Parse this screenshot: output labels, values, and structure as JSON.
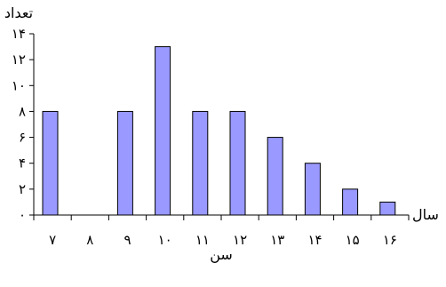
{
  "chart_data": {
    "type": "bar",
    "categories": [
      "۷",
      "۸",
      "۹",
      "۱۰",
      "۱۱",
      "۱۲",
      "۱۳",
      "۱۴",
      "۱۵",
      "۱۶"
    ],
    "values": [
      8,
      0,
      8,
      13,
      8,
      8,
      6,
      4,
      2,
      1
    ],
    "ylabel": "تعداد",
    "xlabel": "سن",
    "x_unit_label": "سال",
    "yticks": [
      0,
      2,
      4,
      6,
      8,
      10,
      12,
      14
    ],
    "ytick_labels": [
      "۰",
      "۲",
      "۴",
      "۶",
      "۸",
      "۱۰",
      "۱۲",
      "۱۴"
    ],
    "ylim": [
      0,
      14
    ],
    "grid": false,
    "bar_color": "#9999ff",
    "bar_edge_color": "#000000"
  }
}
